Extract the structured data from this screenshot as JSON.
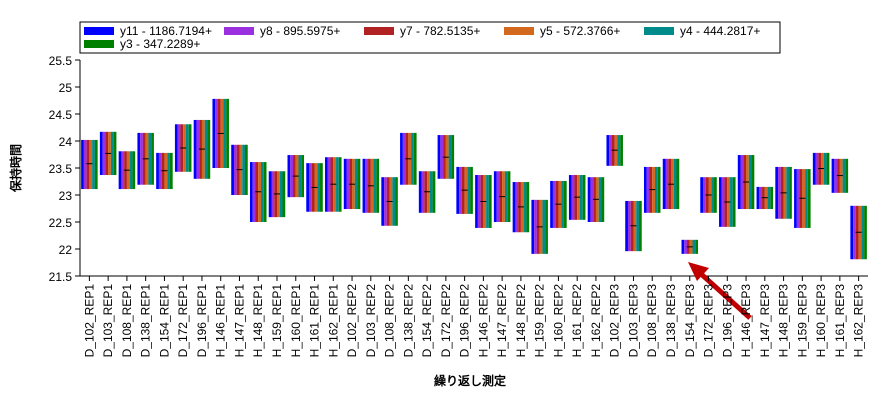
{
  "chart_data": {
    "type": "variability",
    "xlabel": "繰り返し測定",
    "ylabel": "保持時間",
    "categories": [
      "D_102_REP1",
      "D_103_REP1",
      "D_108_REP1",
      "D_138_REP1",
      "D_154_REP1",
      "D_172_REP1",
      "D_196_REP1",
      "H_146_REP1",
      "H_147_REP1",
      "H_148_REP1",
      "H_159_REP1",
      "H_160_REP1",
      "H_161_REP1",
      "H_162_REP1",
      "D_102_REP2",
      "D_103_REP2",
      "D_108_REP2",
      "D_138_REP2",
      "D_154_REP2",
      "D_172_REP2",
      "D_196_REP2",
      "H_146_REP2",
      "H_147_REP2",
      "H_148_REP2",
      "H_159_REP2",
      "H_160_REP2",
      "H_161_REP2",
      "H_162_REP2",
      "D_102_REP3",
      "D_103_REP3",
      "D_108_REP3",
      "D_138_REP3",
      "D_154_REP3",
      "D_172_REP3",
      "D_196_REP3",
      "H_146_REP3",
      "H_147_REP3",
      "H_148_REP3",
      "H_159_REP3",
      "H_160_REP3",
      "H_161_REP3",
      "H_162_REP3"
    ],
    "high": [
      24.02,
      24.17,
      23.81,
      24.15,
      23.78,
      24.31,
      24.39,
      24.78,
      23.93,
      23.61,
      23.44,
      23.74,
      23.59,
      23.7,
      23.67,
      23.67,
      23.33,
      24.15,
      23.44,
      24.11,
      23.52,
      23.37,
      23.44,
      23.24,
      22.91,
      23.26,
      23.37,
      23.33,
      24.11,
      22.89,
      23.52,
      23.67,
      22.17,
      23.33,
      23.33,
      23.74,
      23.15,
      23.52,
      23.48,
      23.78,
      23.67,
      22.8
    ],
    "low": [
      23.11,
      23.37,
      23.11,
      23.19,
      23.11,
      23.43,
      23.3,
      23.5,
      23.0,
      22.5,
      22.59,
      22.96,
      22.69,
      22.69,
      22.74,
      22.67,
      22.43,
      23.19,
      22.67,
      23.3,
      22.65,
      22.39,
      22.5,
      22.31,
      21.91,
      22.39,
      22.54,
      22.5,
      23.54,
      21.96,
      22.67,
      22.74,
      21.91,
      22.67,
      22.41,
      22.74,
      22.74,
      22.56,
      22.39,
      23.19,
      23.04,
      21.81
    ],
    "means": [
      23.58,
      23.77,
      23.46,
      23.67,
      23.45,
      23.87,
      23.85,
      24.14,
      23.47,
      23.06,
      23.02,
      23.35,
      23.14,
      23.2,
      23.2,
      23.17,
      22.88,
      23.67,
      23.06,
      23.7,
      23.09,
      22.88,
      22.97,
      22.78,
      22.41,
      22.83,
      22.96,
      22.92,
      23.83,
      22.43,
      23.1,
      23.2,
      22.04,
      23.0,
      22.87,
      23.24,
      22.95,
      23.04,
      22.94,
      23.49,
      23.36,
      22.31
    ],
    "series": [
      {
        "name": "y11 - 1186.7194+",
        "color": "#0000ff"
      },
      {
        "name": "y8 - 895.5975+",
        "color": "#9b30e0"
      },
      {
        "name": "y7 - 782.5135+",
        "color": "#b22222"
      },
      {
        "name": "y5 - 572.3766+",
        "color": "#d2691e"
      },
      {
        "name": "y4 - 444.2817+",
        "color": "#008b8b"
      },
      {
        "name": "y3 - 347.2289+",
        "color": "#008000"
      }
    ],
    "ylim": [
      21.5,
      25.5
    ],
    "yticks": [
      21.5,
      22,
      22.5,
      23,
      23.5,
      24,
      24.5,
      25,
      25.5
    ]
  }
}
